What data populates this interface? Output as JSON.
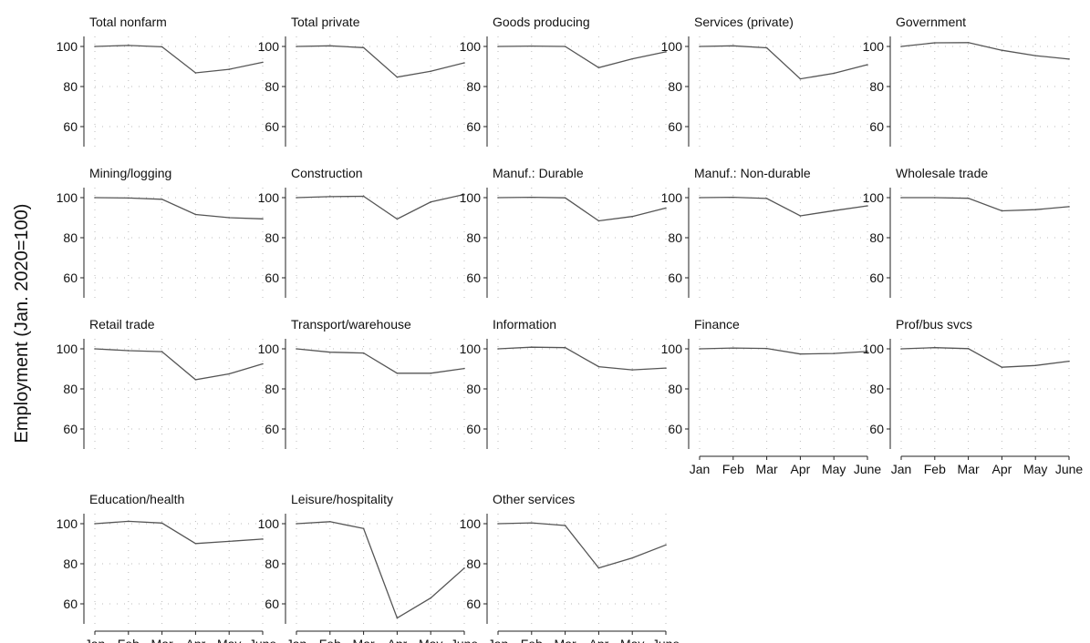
{
  "chart_data": {
    "type": "line",
    "ylabel": "Employment (Jan. 2020=100)",
    "x": [
      "Jan",
      "Feb",
      "Mar",
      "Apr",
      "May",
      "June"
    ],
    "yticks": [
      60,
      80,
      100
    ],
    "ylim": [
      50,
      105
    ],
    "grid": true,
    "line_color": "#555555",
    "panels": [
      {
        "title": "Total nonfarm",
        "values": [
          100,
          100.5,
          99.8,
          86.8,
          88.6,
          92.1
        ]
      },
      {
        "title": "Total private",
        "values": [
          100,
          100.3,
          99.4,
          84.7,
          87.6,
          91.8
        ]
      },
      {
        "title": "Goods producing",
        "values": [
          100,
          100.2,
          100.0,
          89.4,
          93.8,
          97.3
        ]
      },
      {
        "title": "Services (private)",
        "values": [
          100,
          100.3,
          99.3,
          83.8,
          86.6,
          90.9
        ]
      },
      {
        "title": "Government",
        "values": [
          100,
          101.8,
          101.9,
          98.1,
          95.4,
          93.7
        ]
      },
      {
        "title": "Mining/logging",
        "values": [
          100,
          99.8,
          99.2,
          91.6,
          90.0,
          89.4
        ]
      },
      {
        "title": "Construction",
        "values": [
          100,
          100.5,
          100.7,
          89.3,
          97.8,
          101.6
        ]
      },
      {
        "title": "Manuf.: Durable",
        "values": [
          100,
          100.2,
          99.9,
          88.4,
          90.6,
          94.8
        ]
      },
      {
        "title": "Manuf.: Non-durable",
        "values": [
          100,
          100.2,
          99.6,
          90.9,
          93.5,
          95.9
        ]
      },
      {
        "title": "Wholesale trade",
        "values": [
          100,
          100.0,
          99.7,
          93.4,
          94.0,
          95.5
        ]
      },
      {
        "title": "Retail trade",
        "values": [
          100,
          99.1,
          98.6,
          84.6,
          87.5,
          92.5
        ]
      },
      {
        "title": "Transport/warehouse",
        "values": [
          100,
          98.3,
          97.9,
          87.8,
          87.8,
          90.2
        ]
      },
      {
        "title": "Information",
        "values": [
          100,
          100.8,
          100.6,
          91.1,
          89.5,
          90.4
        ]
      },
      {
        "title": "Finance",
        "values": [
          100,
          100.4,
          100.2,
          97.4,
          97.7,
          98.7
        ]
      },
      {
        "title": "Prof/bus svcs",
        "values": [
          100,
          100.6,
          100.1,
          90.8,
          91.7,
          93.8
        ]
      },
      {
        "title": "Education/health",
        "values": [
          100,
          101.2,
          100.3,
          90.1,
          91.2,
          92.3
        ]
      },
      {
        "title": "Leisure/hospitality",
        "values": [
          100,
          101.0,
          97.6,
          52.9,
          62.9,
          77.8
        ]
      },
      {
        "title": "Other services",
        "values": [
          100,
          100.4,
          99.1,
          77.9,
          82.9,
          89.4
        ]
      }
    ]
  }
}
